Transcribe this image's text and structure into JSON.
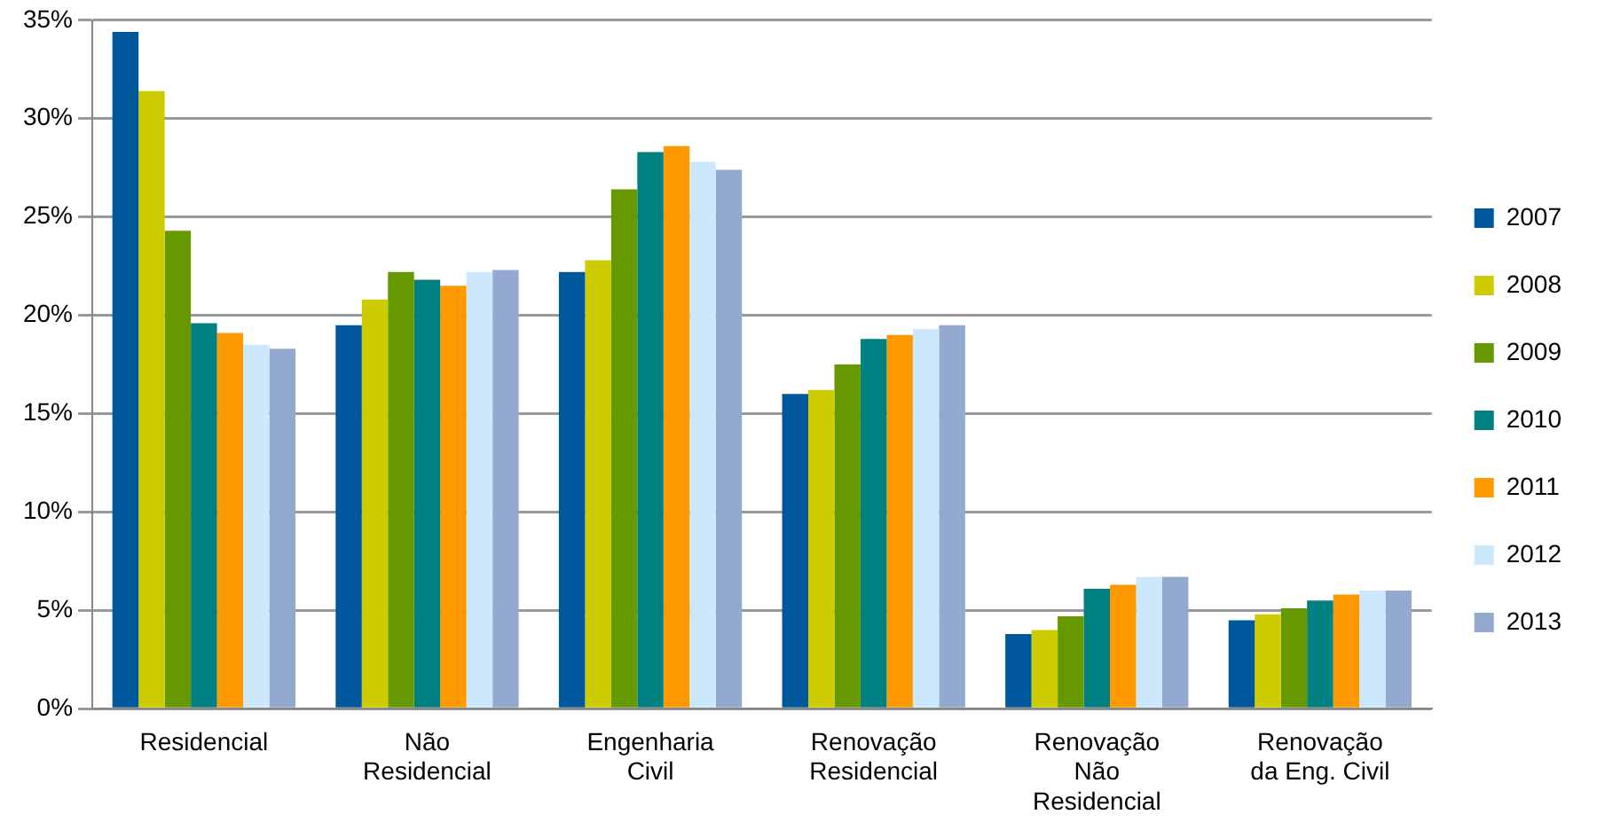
{
  "chart_data": {
    "type": "bar",
    "categories": [
      "Residencial",
      "Não Residencial",
      "Engenharia Civil",
      "Renovação Residencial",
      "Renovação Não Residencial",
      "Renovação da Eng. Civil"
    ],
    "series": [
      {
        "name": "2007",
        "color": "#00589c",
        "values": [
          34.4,
          19.5,
          22.2,
          16.0,
          3.8,
          4.5
        ]
      },
      {
        "name": "2008",
        "color": "#cccc00",
        "values": [
          31.4,
          20.8,
          22.8,
          16.2,
          4.0,
          4.8
        ]
      },
      {
        "name": "2009",
        "color": "#669900",
        "values": [
          24.3,
          22.2,
          26.4,
          17.5,
          4.7,
          5.1
        ]
      },
      {
        "name": "2010",
        "color": "#008080",
        "values": [
          19.6,
          21.8,
          28.3,
          18.8,
          6.1,
          5.5
        ]
      },
      {
        "name": "2011",
        "color": "#ff9900",
        "values": [
          19.1,
          21.5,
          28.6,
          19.0,
          6.3,
          5.8
        ]
      },
      {
        "name": "2012",
        "color": "#cce8fc",
        "values": [
          18.5,
          22.2,
          27.8,
          19.3,
          6.7,
          6.0
        ]
      },
      {
        "name": "2013",
        "color": "#93a9d0",
        "values": [
          18.3,
          22.3,
          27.4,
          19.5,
          6.7,
          6.0
        ]
      }
    ],
    "ylim": [
      0,
      35
    ],
    "yticks": [
      {
        "value": 0,
        "label": "0%"
      },
      {
        "value": 5,
        "label": "5%"
      },
      {
        "value": 10,
        "label": "10%"
      },
      {
        "value": 15,
        "label": "15%"
      },
      {
        "value": 20,
        "label": "20%"
      },
      {
        "value": 25,
        "label": "25%"
      },
      {
        "value": 30,
        "label": "30%"
      },
      {
        "value": 35,
        "label": "35%"
      }
    ],
    "grid": "y",
    "legend": "right"
  }
}
